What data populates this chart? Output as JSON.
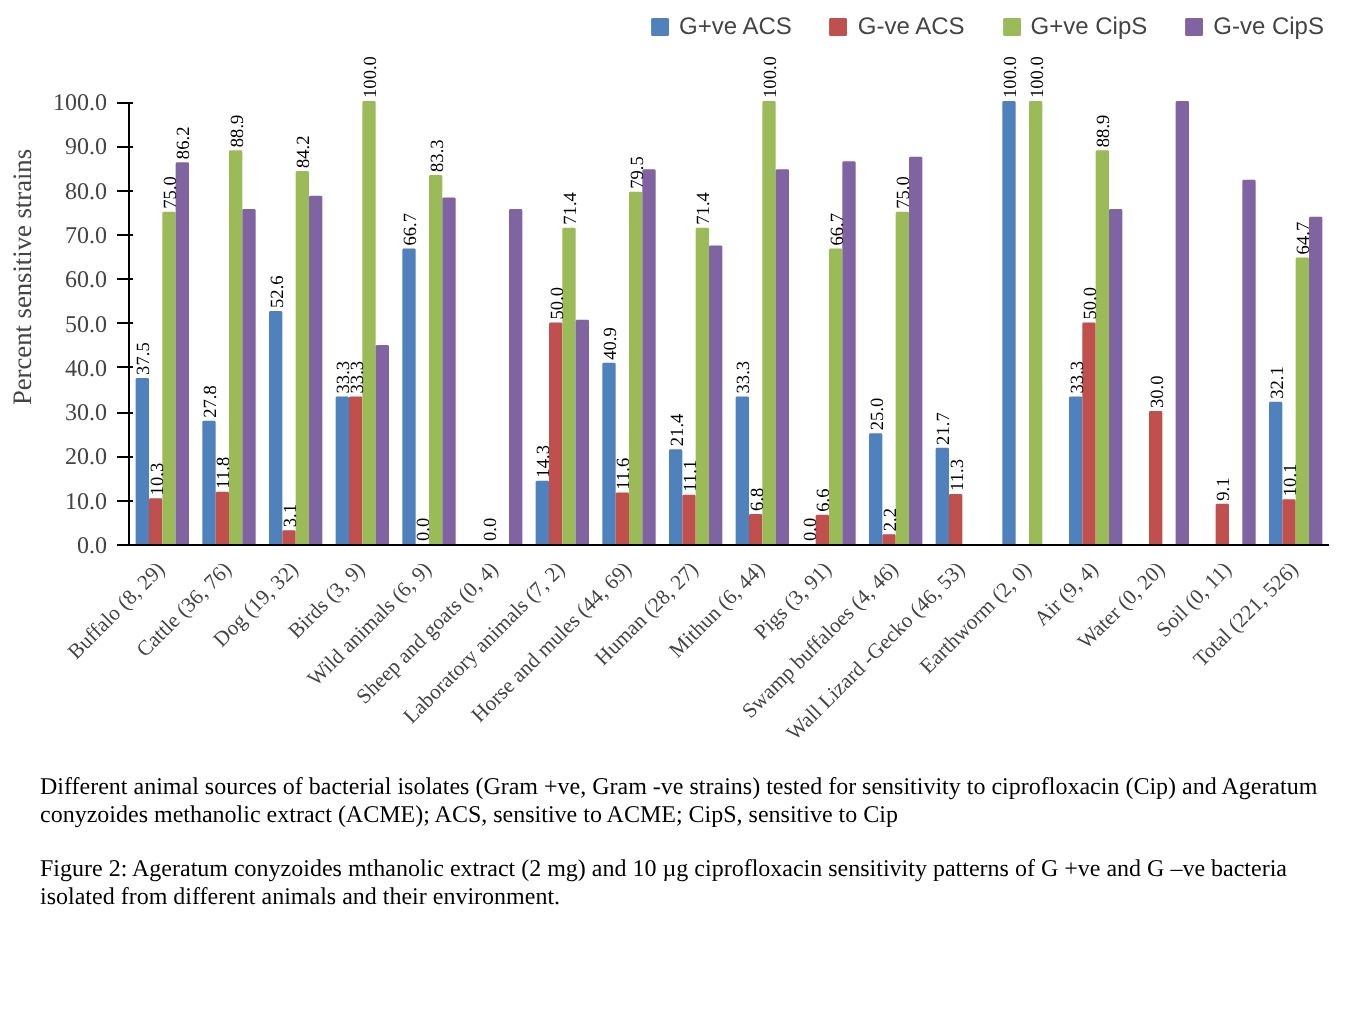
{
  "chart_data": {
    "type": "bar",
    "ylabel": "Percent sensitive strains",
    "categories": [
      "Buffalo (8, 29)",
      "Cattle (36, 76)",
      "Dog (19, 32)",
      "Birds (3, 9)",
      "Wild animals (6, 9)",
      "Sheep and goats (0, 4)",
      "Laboratory animals (7, 2)",
      "Horse and mules (44, 69)",
      "Human (28, 27)",
      "Mithun (6, 44)",
      "Pigs (3, 91)",
      "Swamp buffaloes (4, 46)",
      "Wall Lizard -Gecko (46, 53)",
      "Earthworm (2, 0)",
      "Air (9, 4)",
      "Water (0, 20)",
      "Soil (0, 11)",
      "Total (221, 526)"
    ],
    "series": [
      {
        "name": "G+ve ACS",
        "color": "#4f81bd",
        "values": [
          37.5,
          27.8,
          52.6,
          33.3,
          66.7,
          null,
          14.3,
          40.9,
          21.4,
          33.3,
          0.0,
          25.0,
          21.7,
          100.0,
          33.3,
          null,
          null,
          32.1
        ],
        "value_labels": [
          "37.5",
          "27.8",
          "52.6",
          "33.3",
          "66.7",
          null,
          "14.3",
          "40.9",
          "21.4",
          "33.3",
          "0.0",
          "25.0",
          "21.7",
          "100.0",
          "33.3",
          null,
          null,
          "32.1"
        ]
      },
      {
        "name": "G-ve ACS",
        "color": "#c0504d",
        "values": [
          10.3,
          11.8,
          3.1,
          33.3,
          0.0,
          0.0,
          50.0,
          11.6,
          11.1,
          6.8,
          6.6,
          2.2,
          11.3,
          null,
          50.0,
          30.0,
          9.1,
          10.1
        ],
        "value_labels": [
          "10.3",
          "11.8",
          "3.1",
          "33.3",
          "0.0",
          "0.0",
          "50.0",
          "11.6",
          "11.1",
          "6.8",
          "6.6",
          "2.2",
          "11.3",
          null,
          "50.0",
          "30.0",
          "9.1",
          "10.1"
        ]
      },
      {
        "name": "G+ve CipS",
        "color": "#9bbb59",
        "values": [
          75.0,
          88.9,
          84.2,
          100.0,
          83.3,
          null,
          71.4,
          79.5,
          71.4,
          100.0,
          66.7,
          75.0,
          null,
          100.0,
          88.9,
          null,
          null,
          64.7
        ],
        "value_labels": [
          "75.0",
          "88.9",
          "84.2",
          "100.0",
          "83.3",
          null,
          "71.4",
          "79.5",
          "71.4",
          "100.0",
          "66.7",
          "75.0",
          null,
          "100.0",
          "88.9",
          null,
          null,
          "64.7"
        ]
      },
      {
        "name": "G-ve CipS",
        "color": "#8064a2",
        "values": [
          86.2,
          75.6,
          78.6,
          44.9,
          78.2,
          75.6,
          50.6,
          84.6,
          67.4,
          84.6,
          86.4,
          87.4,
          null,
          null,
          75.6,
          100.0,
          82.2,
          73.9
        ],
        "value_labels": [
          "86.2",
          null,
          null,
          null,
          null,
          null,
          null,
          null,
          null,
          null,
          null,
          null,
          null,
          null,
          null,
          null,
          null,
          null
        ]
      }
    ],
    "ylim": [
      0,
      100
    ],
    "yticks": [
      {
        "value": 0,
        "label": "0.0"
      },
      {
        "value": 10,
        "label": "10.0"
      },
      {
        "value": 20,
        "label": "20.0"
      },
      {
        "value": 30,
        "label": "30.0"
      },
      {
        "value": 40,
        "label": "40.0"
      },
      {
        "value": 50,
        "label": "50.0"
      },
      {
        "value": 60,
        "label": "60.0"
      },
      {
        "value": 70,
        "label": "70.0"
      },
      {
        "value": 80,
        "label": "80.0"
      },
      {
        "value": 90,
        "label": "90.0"
      },
      {
        "value": 100,
        "label": "100.0"
      }
    ],
    "grid": false,
    "legend": "top",
    "annotations": [
      "Different animal sources of bacterial isolates (Gram +ve, Gram -ve strains) tested for sensitivity to ciprofloxacin (Cip) and  Ageratum conyzoides methanolic extract (ACME); ACS, sensitive to ACME; CipS, sensitive to Cip",
      "Figure 2: Ageratum conyzoides mthanolic extract (2 mg) and 10 µg ciprofloxacin sensitivity patterns of G +ve and G –ve bacteria isolated from different animals and their environment."
    ]
  }
}
